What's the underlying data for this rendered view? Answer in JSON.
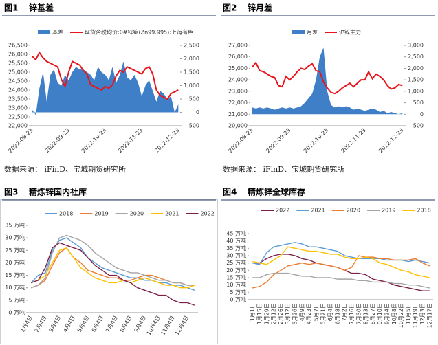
{
  "chart_data": [
    {
      "type": "line",
      "figure": "图1",
      "title": "锌基差",
      "source": "数据来源： iFinD、宝城期货研究所",
      "categories": [
        "2022-08-23",
        null,
        null,
        null,
        null,
        null,
        null,
        null,
        null,
        null,
        "2022-09-23",
        null,
        null,
        null,
        null,
        null,
        null,
        null,
        null,
        null,
        "2022-10-23",
        null,
        null,
        null,
        null,
        null,
        null,
        null,
        null,
        null,
        "2022-11-23",
        null,
        null,
        null,
        null,
        null,
        null,
        null,
        null,
        null,
        "2022-12-23"
      ],
      "ylim": [
        22000,
        26500
      ],
      "yticks": [
        {
          "value": 22000,
          "label": "22,000"
        },
        {
          "value": 22500,
          "label": "22,500"
        },
        {
          "value": 23000,
          "label": "23,000"
        },
        {
          "value": 23500,
          "label": "23,500"
        },
        {
          "value": 24000,
          "label": "24,000"
        },
        {
          "value": 24500,
          "label": "24,500"
        },
        {
          "value": 25000,
          "label": "25,000"
        },
        {
          "value": 25500,
          "label": "25,500"
        },
        {
          "value": 26000,
          "label": "26,000"
        },
        {
          "value": 26500,
          "label": "26,500"
        }
      ],
      "y2lim": [
        -500,
        2500
      ],
      "y2ticks": [
        -500,
        0,
        500,
        {
          "value": 1000,
          "label": "1,000"
        },
        {
          "value": 1500,
          "label": "1,500"
        },
        {
          "value": 2000,
          "label": "2,000"
        },
        {
          "value": 2500,
          "label": "2,500"
        }
      ],
      "series": [
        {
          "name": "基差",
          "type": "area",
          "axis": "y2",
          "color": "#3f7fc8",
          "values": [
            100,
            -100,
            900,
            1500,
            400,
            1400,
            1600,
            1100,
            1000,
            1400,
            1200,
            1500,
            1700,
            1600,
            1600,
            1500,
            1400,
            1200,
            1700,
            1500,
            1400,
            1200,
            1700,
            1100,
            1400,
            1900,
            1300,
            1200,
            1400,
            1100,
            600,
            1000,
            1200,
            800,
            400,
            800,
            700,
            500,
            600,
            0,
            300
          ]
        },
        {
          "name": "现货含税均价:0#锌锭(Zn99.995):上海有色",
          "type": "line",
          "color": "#e8141c",
          "values": [
            25900,
            25700,
            26100,
            25800,
            25600,
            25500,
            25400,
            25300,
            24600,
            24200,
            25000,
            25600,
            25500,
            25400,
            25100,
            24900,
            24300,
            24200,
            24100,
            24000,
            24200,
            24100,
            24300,
            24800,
            25100,
            25000,
            25300,
            25200,
            25100,
            25000,
            24900,
            25200,
            25300,
            24900,
            24000,
            23700,
            23600,
            23500,
            23800,
            23900,
            24000
          ]
        }
      ]
    },
    {
      "type": "line",
      "figure": "图2",
      "title": "锌月差",
      "source": "数据来源： iFinD、宝城期货研究所",
      "categories": [
        "2022-08-23",
        null,
        null,
        null,
        null,
        null,
        null,
        null,
        null,
        null,
        "2022-09-23",
        null,
        null,
        null,
        null,
        null,
        null,
        null,
        null,
        null,
        "2022-10-23",
        null,
        null,
        null,
        null,
        null,
        null,
        null,
        null,
        null,
        "2022-11-23",
        null,
        null,
        null,
        null,
        null,
        null,
        null,
        null,
        null,
        "2022-12-23"
      ],
      "ylim": [
        20000,
        27000
      ],
      "yticks": [
        {
          "value": 20000,
          "label": "20,000"
        },
        {
          "value": 21000,
          "label": "21,000"
        },
        {
          "value": 22000,
          "label": "22,000"
        },
        {
          "value": 23000,
          "label": "23,000"
        },
        {
          "value": 24000,
          "label": "24,000"
        },
        {
          "value": 25000,
          "label": "25,000"
        },
        {
          "value": 26000,
          "label": "26,000"
        },
        {
          "value": 27000,
          "label": "27,000"
        }
      ],
      "y2lim": [
        -500,
        3000
      ],
      "y2ticks": [
        -500,
        0,
        500,
        {
          "value": 1000,
          "label": "1,000"
        },
        {
          "value": 1500,
          "label": "1,500"
        },
        {
          "value": 2000,
          "label": "2,000"
        },
        {
          "value": 2500,
          "label": "2,500"
        },
        {
          "value": 3000,
          "label": "3,000"
        }
      ],
      "series": [
        {
          "name": "月差",
          "type": "area",
          "axis": "y2",
          "color": "#3f7fc8",
          "values": [
            300,
            250,
            300,
            250,
            300,
            250,
            200,
            250,
            300,
            250,
            300,
            250,
            300,
            350,
            500,
            700,
            900,
            1500,
            2500,
            2900,
            1000,
            400,
            300,
            350,
            300,
            350,
            300,
            200,
            250,
            200,
            150,
            200,
            250,
            200,
            100,
            150,
            50,
            100,
            50,
            0,
            50
          ]
        },
        {
          "name": "沪锌主力",
          "type": "line",
          "color": "#e8141c",
          "values": [
            25100,
            25500,
            24800,
            24700,
            24500,
            24300,
            24200,
            23500,
            23400,
            24300,
            24000,
            24300,
            24700,
            25000,
            24900,
            25200,
            25400,
            24800,
            24700,
            23800,
            23300,
            22900,
            22800,
            23000,
            23300,
            23500,
            23700,
            23400,
            23700,
            24000,
            24000,
            24700,
            24100,
            24500,
            24300,
            24000,
            23500,
            23200,
            23300,
            23600,
            23500
          ]
        }
      ]
    },
    {
      "type": "line",
      "figure": "图3",
      "title": "精炼锌国内社库",
      "categories": [
        "1月4日",
        null,
        "2月4日",
        null,
        "3月4日",
        null,
        "4月4日",
        null,
        "5月4日",
        null,
        "6月4日",
        null,
        "7月4日",
        null,
        "8月4日",
        null,
        "9月4日",
        null,
        "10月4日",
        null,
        "11月4日",
        null,
        "12月4日",
        null
      ],
      "ylim": [
        0,
        35
      ],
      "yticks": [
        {
          "value": 0,
          "label": "0 万吨"
        },
        {
          "value": 5,
          "label": "5 万吨"
        },
        {
          "value": 10,
          "label": "10 万吨"
        },
        {
          "value": 15,
          "label": "15 万吨"
        },
        {
          "value": 20,
          "label": "20 万吨"
        },
        {
          "value": 25,
          "label": "25 万吨"
        },
        {
          "value": 30,
          "label": "30 万吨"
        },
        {
          "value": 35,
          "label": "35 万吨"
        }
      ],
      "series": [
        {
          "name": "2018",
          "type": "line",
          "color": "#5b9bd5",
          "values": [
            12,
            15,
            16,
            25,
            29,
            30,
            28,
            26,
            22,
            20,
            18,
            17,
            16,
            15,
            14,
            14,
            13,
            13,
            12,
            12,
            11,
            11,
            10,
            9
          ]
        },
        {
          "name": "2019",
          "type": "line",
          "color": "#ed7d31",
          "values": [
            10,
            11,
            13,
            19,
            24,
            26,
            22,
            20,
            17,
            16,
            15,
            14,
            14,
            13,
            13,
            14,
            15,
            15,
            14,
            13,
            12,
            12,
            11,
            11
          ]
        },
        {
          "name": "2020",
          "type": "line",
          "color": "#a5a5a5",
          "values": [
            10,
            11,
            14,
            24,
            30,
            31,
            30,
            29,
            27,
            24,
            22,
            20,
            18,
            17,
            16,
            16,
            15,
            14,
            13,
            13,
            12,
            12,
            11,
            11
          ]
        },
        {
          "name": "2021",
          "type": "line",
          "color": "#ffc000",
          "values": [
            12,
            13,
            15,
            20,
            25,
            26,
            22,
            18,
            16,
            14,
            13,
            12,
            12,
            13,
            12,
            13,
            14,
            13,
            12,
            11,
            11,
            10,
            10,
            11
          ]
        },
        {
          "name": "2022",
          "type": "line",
          "color": "#7b1f4b",
          "values": [
            12,
            13,
            18,
            26,
            28,
            27,
            26,
            25,
            22,
            19,
            17,
            15,
            15,
            13,
            12,
            10,
            9,
            8,
            7,
            7,
            5,
            4,
            4,
            3
          ]
        }
      ]
    },
    {
      "type": "line",
      "figure": "图4",
      "title": "精炼锌全球库存",
      "categories": [
        "1月1日",
        "1月15日",
        "1月29日",
        "2月12日",
        "2月26日",
        "3月12日",
        "3月26日",
        "4月9日",
        "4月23日",
        "5月7日",
        "5月21日",
        "6月4日",
        "6月18日",
        "7月2日",
        "7月16日",
        "7月30日",
        "8月13日",
        "8月27日",
        "9月10日",
        "9月24日",
        "10月8日",
        "10月22日",
        "11月5日",
        "11月19日",
        "12月3日",
        "12月17日"
      ],
      "ylim": [
        0,
        45
      ],
      "yticks": [
        {
          "value": 0,
          "label": "0 万吨"
        },
        {
          "value": 5,
          "label": "5 万吨"
        },
        {
          "value": 10,
          "label": "10 万吨"
        },
        {
          "value": 15,
          "label": "15 万吨"
        },
        {
          "value": 20,
          "label": "20 万吨"
        },
        {
          "value": 25,
          "label": "25 万吨"
        },
        {
          "value": 30,
          "label": "30 万吨"
        },
        {
          "value": 35,
          "label": "35 万吨"
        },
        {
          "value": 40,
          "label": "40 万吨"
        },
        {
          "value": 45,
          "label": "45 万吨"
        }
      ],
      "series": [
        {
          "name": "2022",
          "type": "line",
          "color": "#7b1f4b",
          "values": [
            25,
            25,
            28,
            30,
            31,
            31,
            30,
            28,
            27,
            25,
            24,
            23,
            22,
            20,
            18,
            18,
            17,
            14,
            13,
            12,
            10,
            9,
            8,
            7,
            6,
            6
          ]
        },
        {
          "name": "2021",
          "type": "line",
          "color": "#5b9bd5",
          "values": [
            25,
            24,
            32,
            36,
            37,
            38,
            39,
            38,
            36,
            36,
            35,
            34,
            33,
            30,
            29,
            28,
            28,
            28,
            28,
            27,
            27,
            27,
            26,
            27,
            26,
            25
          ]
        },
        {
          "name": "2020",
          "type": "line",
          "color": "#ed7d31",
          "values": [
            8,
            9,
            12,
            17,
            20,
            23,
            24,
            25,
            24,
            25,
            24,
            23,
            22,
            20,
            22,
            30,
            29,
            29,
            28,
            28,
            27,
            27,
            27,
            28,
            25,
            23
          ]
        },
        {
          "name": "2019",
          "type": "line",
          "color": "#a5a5a5",
          "values": [
            15,
            15,
            17,
            18,
            18,
            18,
            17,
            16,
            16,
            15,
            15,
            15,
            14,
            14,
            14,
            13,
            13,
            12,
            12,
            12,
            11,
            11,
            10,
            10,
            9,
            8
          ]
        },
        {
          "name": "2018",
          "type": "line",
          "color": "#ffc000",
          "values": [
            26,
            25,
            24,
            27,
            30,
            36,
            35,
            34,
            33,
            33,
            32,
            31,
            31,
            29,
            28,
            28,
            29,
            28,
            25,
            24,
            22,
            20,
            19,
            17,
            16,
            15
          ]
        }
      ]
    }
  ]
}
